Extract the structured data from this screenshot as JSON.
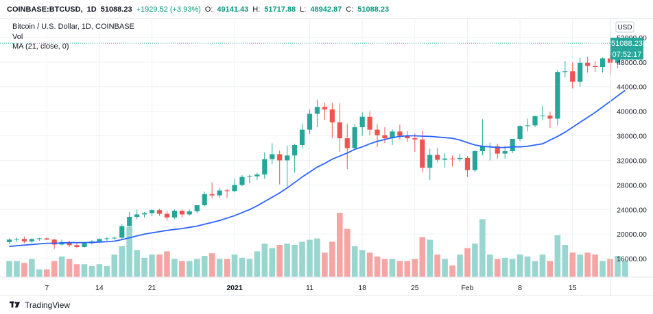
{
  "header": {
    "symbol": "COINBASE:BTCUSD,",
    "interval": "1D",
    "last": "51088.23",
    "change": "+1929.52 (+3.93%)",
    "o_label": "O:",
    "o": "49141.43",
    "h_label": "H:",
    "h": "51717.88",
    "l_label": "L:",
    "l": "48942.87",
    "c_label": "C:",
    "c": "51088.23"
  },
  "legend": {
    "title": "Bitcoin / U.S. Dollar, 1D, COINBASE",
    "vol": "Vol",
    "ma": "MA (21, close, 0)"
  },
  "footer": {
    "brand": "TradingView"
  },
  "colors": {
    "up": "#26a69a",
    "down": "#ef5350",
    "ma": "#2962ff",
    "vol_up": "#9ad6d0",
    "vol_down": "#f5a6a4"
  },
  "chart_data": {
    "type": "candlestick",
    "title": "Bitcoin / U.S. Dollar, 1D, COINBASE",
    "currency": "USD",
    "y_ticks": [
      16000,
      20000,
      24000,
      28000,
      32000,
      36000,
      40000,
      44000,
      48000,
      52000
    ],
    "y_tick_labels": [
      "16000.00",
      "20000.00",
      "24000.00",
      "28000.00",
      "32000.00",
      "36000.00",
      "40000.00",
      "44000.00",
      "48000.00",
      "52000.00"
    ],
    "ylim": [
      13000,
      55000
    ],
    "x_ticks": [
      {
        "label": "7",
        "index": 5,
        "bold": false
      },
      {
        "label": "14",
        "index": 12,
        "bold": false
      },
      {
        "label": "21",
        "index": 19,
        "bold": false
      },
      {
        "label": "2021",
        "index": 30,
        "bold": true
      },
      {
        "label": "11",
        "index": 40,
        "bold": false
      },
      {
        "label": "18",
        "index": 47,
        "bold": false
      },
      {
        "label": "25",
        "index": 54,
        "bold": false
      },
      {
        "label": "Feb",
        "index": 61,
        "bold": false
      },
      {
        "label": "8",
        "index": 68,
        "bold": false
      },
      {
        "label": "15",
        "index": 75,
        "bold": false
      }
    ],
    "last_price": {
      "label": "51088.23",
      "value": 51088.23
    },
    "countdown": "07:52:17",
    "ma_label": "MA (21, close, 0)",
    "candles": [
      {
        "o": 18700,
        "h": 19300,
        "l": 18400,
        "c": 19100,
        "v": 0.25
      },
      {
        "o": 19100,
        "h": 19400,
        "l": 18800,
        "c": 19200,
        "v": 0.25
      },
      {
        "o": 19200,
        "h": 19600,
        "l": 18500,
        "c": 18800,
        "v": 0.22
      },
      {
        "o": 18800,
        "h": 19300,
        "l": 18600,
        "c": 19200,
        "v": 0.28
      },
      {
        "o": 19200,
        "h": 19400,
        "l": 18900,
        "c": 19300,
        "v": 0.12
      },
      {
        "o": 19300,
        "h": 19450,
        "l": 19000,
        "c": 19100,
        "v": 0.12
      },
      {
        "o": 19100,
        "h": 19200,
        "l": 17600,
        "c": 18300,
        "v": 0.25
      },
      {
        "o": 18300,
        "h": 19100,
        "l": 18100,
        "c": 18700,
        "v": 0.32
      },
      {
        "o": 18700,
        "h": 18900,
        "l": 17900,
        "c": 18200,
        "v": 0.28
      },
      {
        "o": 18200,
        "h": 18700,
        "l": 17700,
        "c": 17900,
        "v": 0.2
      },
      {
        "o": 17900,
        "h": 18700,
        "l": 17800,
        "c": 18500,
        "v": 0.2
      },
      {
        "o": 18500,
        "h": 19000,
        "l": 18300,
        "c": 18800,
        "v": 0.17
      },
      {
        "o": 18800,
        "h": 19300,
        "l": 18600,
        "c": 19200,
        "v": 0.2
      },
      {
        "o": 19200,
        "h": 19500,
        "l": 18900,
        "c": 19300,
        "v": 0.17
      },
      {
        "o": 19300,
        "h": 19600,
        "l": 19100,
        "c": 19400,
        "v": 0.35
      },
      {
        "o": 19400,
        "h": 21600,
        "l": 19200,
        "c": 21300,
        "v": 0.48
      },
      {
        "o": 21300,
        "h": 23600,
        "l": 21200,
        "c": 22800,
        "v": 0.78
      },
      {
        "o": 22800,
        "h": 24000,
        "l": 22400,
        "c": 23200,
        "v": 0.42
      },
      {
        "o": 23200,
        "h": 23600,
        "l": 22700,
        "c": 23400,
        "v": 0.3
      },
      {
        "o": 23400,
        "h": 24100,
        "l": 22900,
        "c": 23900,
        "v": 0.35
      },
      {
        "o": 23900,
        "h": 24100,
        "l": 23000,
        "c": 23300,
        "v": 0.35
      },
      {
        "o": 23300,
        "h": 23800,
        "l": 22200,
        "c": 22700,
        "v": 0.4
      },
      {
        "o": 22700,
        "h": 24000,
        "l": 22400,
        "c": 23800,
        "v": 0.28
      },
      {
        "o": 23800,
        "h": 24000,
        "l": 22700,
        "c": 23200,
        "v": 0.25
      },
      {
        "o": 23200,
        "h": 24000,
        "l": 23000,
        "c": 23700,
        "v": 0.25
      },
      {
        "o": 23700,
        "h": 24700,
        "l": 23400,
        "c": 24700,
        "v": 0.28
      },
      {
        "o": 24700,
        "h": 26900,
        "l": 24500,
        "c": 26500,
        "v": 0.33
      },
      {
        "o": 26500,
        "h": 28400,
        "l": 25900,
        "c": 26300,
        "v": 0.37
      },
      {
        "o": 26300,
        "h": 27500,
        "l": 25900,
        "c": 27100,
        "v": 0.28
      },
      {
        "o": 27100,
        "h": 27400,
        "l": 25900,
        "c": 27000,
        "v": 0.28
      },
      {
        "o": 27000,
        "h": 29000,
        "l": 26800,
        "c": 28000,
        "v": 0.35
      },
      {
        "o": 28000,
        "h": 29600,
        "l": 27800,
        "c": 29300,
        "v": 0.3
      },
      {
        "o": 29300,
        "h": 29700,
        "l": 28300,
        "c": 29400,
        "v": 0.28
      },
      {
        "o": 29400,
        "h": 30000,
        "l": 28800,
        "c": 29700,
        "v": 0.4
      },
      {
        "o": 29700,
        "h": 33300,
        "l": 29000,
        "c": 32200,
        "v": 0.52
      },
      {
        "o": 32200,
        "h": 34800,
        "l": 31400,
        "c": 33000,
        "v": 0.45
      },
      {
        "o": 33000,
        "h": 33600,
        "l": 28100,
        "c": 32000,
        "v": 0.5
      },
      {
        "o": 32000,
        "h": 34400,
        "l": 27700,
        "c": 32800,
        "v": 0.52
      },
      {
        "o": 32800,
        "h": 34700,
        "l": 30000,
        "c": 34500,
        "v": 0.5
      },
      {
        "o": 34500,
        "h": 38000,
        "l": 34000,
        "c": 37000,
        "v": 0.55
      },
      {
        "o": 37000,
        "h": 40300,
        "l": 36300,
        "c": 39600,
        "v": 0.58
      },
      {
        "o": 39600,
        "h": 41900,
        "l": 37400,
        "c": 40700,
        "v": 0.6
      },
      {
        "o": 40700,
        "h": 41400,
        "l": 38600,
        "c": 40300,
        "v": 0.38
      },
      {
        "o": 40300,
        "h": 41400,
        "l": 35600,
        "c": 38200,
        "v": 0.55
      },
      {
        "o": 38200,
        "h": 41300,
        "l": 33400,
        "c": 35600,
        "v": 1.0
      },
      {
        "o": 35600,
        "h": 38000,
        "l": 30600,
        "c": 34000,
        "v": 0.75
      },
      {
        "o": 34000,
        "h": 37900,
        "l": 33700,
        "c": 37400,
        "v": 0.48
      },
      {
        "o": 37400,
        "h": 39800,
        "l": 36000,
        "c": 39100,
        "v": 0.42
      },
      {
        "o": 39100,
        "h": 40000,
        "l": 36100,
        "c": 37000,
        "v": 0.38
      },
      {
        "o": 37000,
        "h": 37900,
        "l": 34200,
        "c": 36100,
        "v": 0.32
      },
      {
        "o": 36100,
        "h": 37400,
        "l": 34800,
        "c": 35600,
        "v": 0.28
      },
      {
        "o": 35600,
        "h": 37100,
        "l": 34500,
        "c": 36700,
        "v": 0.28
      },
      {
        "o": 36700,
        "h": 37800,
        "l": 35400,
        "c": 36000,
        "v": 0.25
      },
      {
        "o": 36000,
        "h": 36800,
        "l": 35000,
        "c": 35600,
        "v": 0.25
      },
      {
        "o": 35600,
        "h": 36400,
        "l": 33400,
        "c": 35400,
        "v": 0.28
      },
      {
        "o": 35400,
        "h": 36800,
        "l": 30100,
        "c": 30800,
        "v": 0.62
      },
      {
        "o": 30800,
        "h": 33900,
        "l": 28800,
        "c": 32900,
        "v": 0.58
      },
      {
        "o": 32900,
        "h": 34000,
        "l": 31700,
        "c": 32100,
        "v": 0.35
      },
      {
        "o": 32100,
        "h": 33200,
        "l": 30800,
        "c": 32300,
        "v": 0.28
      },
      {
        "o": 32300,
        "h": 32800,
        "l": 31000,
        "c": 32200,
        "v": 0.18
      },
      {
        "o": 32200,
        "h": 33100,
        "l": 31800,
        "c": 32400,
        "v": 0.35
      },
      {
        "o": 32400,
        "h": 32700,
        "l": 29300,
        "c": 30400,
        "v": 0.45
      },
      {
        "o": 30400,
        "h": 33700,
        "l": 30100,
        "c": 33500,
        "v": 0.52
      },
      {
        "o": 33500,
        "h": 38700,
        "l": 32800,
        "c": 34300,
        "v": 0.9
      },
      {
        "o": 34300,
        "h": 34900,
        "l": 32000,
        "c": 34300,
        "v": 0.35
      },
      {
        "o": 34300,
        "h": 34700,
        "l": 32300,
        "c": 33100,
        "v": 0.28
      },
      {
        "o": 33100,
        "h": 34400,
        "l": 32300,
        "c": 33500,
        "v": 0.3
      },
      {
        "o": 33500,
        "h": 35500,
        "l": 33200,
        "c": 35500,
        "v": 0.28
      },
      {
        "o": 35500,
        "h": 37700,
        "l": 35100,
        "c": 37600,
        "v": 0.35
      },
      {
        "o": 37600,
        "h": 38800,
        "l": 36700,
        "c": 37700,
        "v": 0.32
      },
      {
        "o": 37700,
        "h": 39300,
        "l": 37400,
        "c": 39200,
        "v": 0.25
      },
      {
        "o": 39200,
        "h": 40900,
        "l": 38600,
        "c": 39300,
        "v": 0.35
      },
      {
        "o": 39300,
        "h": 39900,
        "l": 37300,
        "c": 38800,
        "v": 0.25
      },
      {
        "o": 38800,
        "h": 46700,
        "l": 37700,
        "c": 46400,
        "v": 0.65
      },
      {
        "o": 46400,
        "h": 48200,
        "l": 45500,
        "c": 46500,
        "v": 0.5
      },
      {
        "o": 46500,
        "h": 48000,
        "l": 43700,
        "c": 44800,
        "v": 0.38
      },
      {
        "o": 44800,
        "h": 48700,
        "l": 44000,
        "c": 47900,
        "v": 0.35
      },
      {
        "o": 47900,
        "h": 48900,
        "l": 46300,
        "c": 47400,
        "v": 0.38
      },
      {
        "o": 47400,
        "h": 48200,
        "l": 46400,
        "c": 47200,
        "v": 0.35
      },
      {
        "o": 47200,
        "h": 48800,
        "l": 46300,
        "c": 48600,
        "v": 0.25
      },
      {
        "o": 48600,
        "h": 49200,
        "l": 45900,
        "c": 47900,
        "v": 0.28
      },
      {
        "o": 47900,
        "h": 50600,
        "l": 47000,
        "c": 49100,
        "v": 0.33
      },
      {
        "o": 49100,
        "h": 51700,
        "l": 48900,
        "c": 51088,
        "v": 0.25
      }
    ],
    "ma": [
      18000,
      18100,
      18200,
      18300,
      18400,
      18500,
      18500,
      18550,
      18600,
      18600,
      18600,
      18650,
      18700,
      18750,
      18850,
      19100,
      19400,
      19700,
      20000,
      20200,
      20400,
      20600,
      20750,
      20900,
      21100,
      21300,
      21600,
      21900,
      22200,
      22600,
      23000,
      23500,
      24000,
      24600,
      25300,
      26000,
      26700,
      27500,
      28400,
      29300,
      30100,
      30900,
      31500,
      32200,
      32700,
      33200,
      33800,
      34200,
      34700,
      35100,
      35400,
      35700,
      35900,
      36000,
      36000,
      35950,
      35900,
      35800,
      35700,
      35600,
      35300,
      34900,
      34500,
      34300,
      34200,
      34100,
      34100,
      34200,
      34200,
      34300,
      34500,
      34700,
      35300,
      35900,
      36600,
      37400,
      38200,
      39000,
      39800,
      40700,
      41600,
      42500,
      43400
    ]
  }
}
